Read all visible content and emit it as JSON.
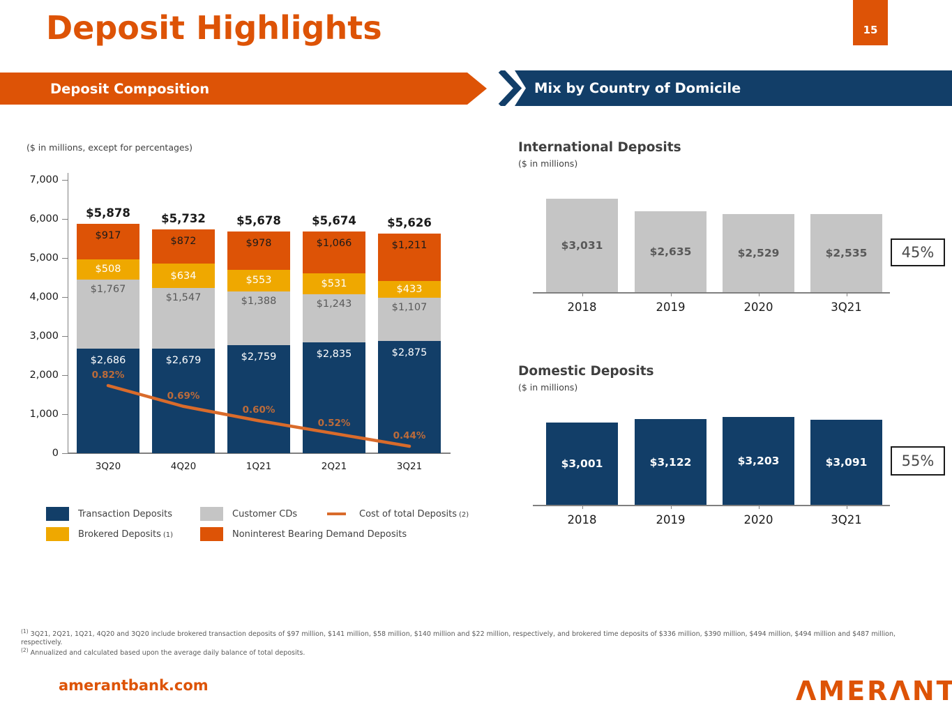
{
  "slide": {
    "title": "Deposit Highlights",
    "page_number": "15",
    "left_section_header": "Deposit Composition",
    "right_section_header": "Mix by Country of Domicile",
    "footer": {
      "website": "amerantbank.com",
      "logo": "AMERANT"
    }
  },
  "colors": {
    "brand_orange": "#DD5306",
    "navy": "#123E68",
    "gold": "#EFA800",
    "gray_bar": "#C5C5C5",
    "line_orange": "#D96B2B",
    "pct_label_orange": "#BC6B3A",
    "text_dark": "#1A1A1A",
    "text_gray": "#595959",
    "heading_gray": "#3F3F3F",
    "axis_gray": "#7F7F7F"
  },
  "chart_data": [
    {
      "id": "deposit_composition",
      "type": "bar",
      "subtype": "stacked-column-with-line",
      "title": "Deposit Composition",
      "units_note": "($ in millions, except for percentages)",
      "categories": [
        "3Q20",
        "4Q20",
        "1Q21",
        "2Q21",
        "3Q21"
      ],
      "series": [
        {
          "name": "Transaction Deposits",
          "color": "#123E68",
          "label_color": "#FFFFFF",
          "values": [
            2686,
            2679,
            2759,
            2835,
            2875
          ]
        },
        {
          "name": "Customer CDs",
          "color": "#C5C5C5",
          "label_color": "#595959",
          "values": [
            1767,
            1547,
            1388,
            1243,
            1107
          ]
        },
        {
          "name": "Brokered Deposits (1)",
          "color": "#EFA800",
          "label_color": "#FFFFFF",
          "values": [
            508,
            634,
            553,
            531,
            433
          ]
        },
        {
          "name": "Noninterest Bearing Demand Deposits",
          "color": "#DD5306",
          "label_color": "#1A1A1A",
          "values": [
            917,
            872,
            978,
            1066,
            1211
          ]
        }
      ],
      "totals": [
        5878,
        5732,
        5678,
        5674,
        5626
      ],
      "line_series": {
        "name": "Cost of total Deposits (2)",
        "values_percent": [
          0.82,
          0.69,
          0.6,
          0.52,
          0.44
        ]
      },
      "ylim": [
        0,
        7000
      ],
      "ytick_step": 1000,
      "grid": false,
      "legend_position": "bottom"
    },
    {
      "id": "international_deposits",
      "type": "bar",
      "title": "International Deposits",
      "units_note": "($ in millions)",
      "categories": [
        "2018",
        "2019",
        "2020",
        "3Q21"
      ],
      "values": [
        3031,
        2635,
        2529,
        2535
      ],
      "share_label": "45%",
      "bar_color": "#C5C5C5",
      "label_color": "#595959"
    },
    {
      "id": "domestic_deposits",
      "type": "bar",
      "title": "Domestic Deposits",
      "units_note": "($ in millions)",
      "categories": [
        "2018",
        "2019",
        "2020",
        "3Q21"
      ],
      "values": [
        3001,
        3122,
        3203,
        3091
      ],
      "share_label": "55%",
      "bar_color": "#123E68",
      "label_color": "#FFFFFF"
    }
  ],
  "legend": {
    "items": [
      {
        "swatch": "navy",
        "label": "Transaction Deposits",
        "sup": ""
      },
      {
        "swatch": "gray",
        "label": "Customer CDs",
        "sup": ""
      },
      {
        "swatch": "line",
        "label": "Cost of total Deposits",
        "sup": "(2)"
      },
      {
        "swatch": "gold",
        "label": "Brokered Deposits",
        "sup": "(1)"
      },
      {
        "swatch": "orange",
        "label": "Noninterest Bearing Demand Deposits",
        "sup": ""
      }
    ]
  },
  "footnotes": [
    {
      "sup": "(1)",
      "text": "3Q21, 2Q21, 1Q21, 4Q20 and 3Q20 include brokered transaction deposits of $97 million, $141 million, $58 million,  $140 million and $22 million, respectively, and brokered time deposits of $336 million, $390 million, $494 million, $494 million and $487 million, respectively."
    },
    {
      "sup": "(2)",
      "text": "Annualized and calculated based upon the average daily balance of total deposits."
    }
  ]
}
